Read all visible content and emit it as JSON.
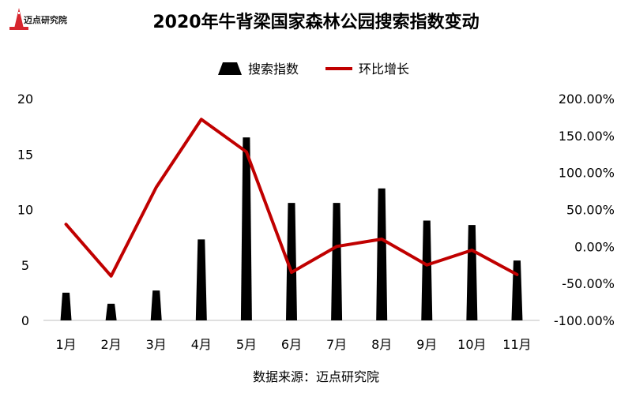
{
  "brand": {
    "name": "迈点研究院",
    "sub": "MEADIN ACADEMY"
  },
  "source_text": "数据来源：迈点研究院",
  "chart_data": {
    "type": "bar",
    "title": "2020年牛背梁国家森林公园搜索指数变动",
    "categories": [
      "1月",
      "2月",
      "3月",
      "4月",
      "5月",
      "6月",
      "7月",
      "8月",
      "9月",
      "10月",
      "11月"
    ],
    "series": [
      {
        "name": "搜索指数",
        "type": "bar",
        "axis": "left",
        "color": "#000000",
        "values": [
          2.5,
          1.5,
          2.7,
          7.3,
          16.5,
          10.6,
          10.6,
          11.9,
          9.0,
          8.6,
          5.4
        ]
      },
      {
        "name": "环比增长",
        "type": "line",
        "axis": "right",
        "color": "#c00000",
        "values": [
          30,
          -40,
          80,
          172,
          128,
          -35,
          0,
          10,
          -25,
          -5,
          -38
        ]
      }
    ],
    "y_left": {
      "min": 0,
      "max": 20,
      "ticks": [
        "0",
        "5",
        "10",
        "15",
        "20"
      ],
      "tick_values": [
        0,
        5,
        10,
        15,
        20
      ]
    },
    "y_right": {
      "min": -100,
      "max": 200,
      "ticks": [
        "-100.00%",
        "-50.00%",
        "0.00%",
        "50.00%",
        "100.00%",
        "150.00%",
        "200.00%"
      ],
      "tick_values": [
        -100,
        -50,
        0,
        50,
        100,
        150,
        200
      ]
    },
    "legend_position": "top-center",
    "grid": false
  }
}
